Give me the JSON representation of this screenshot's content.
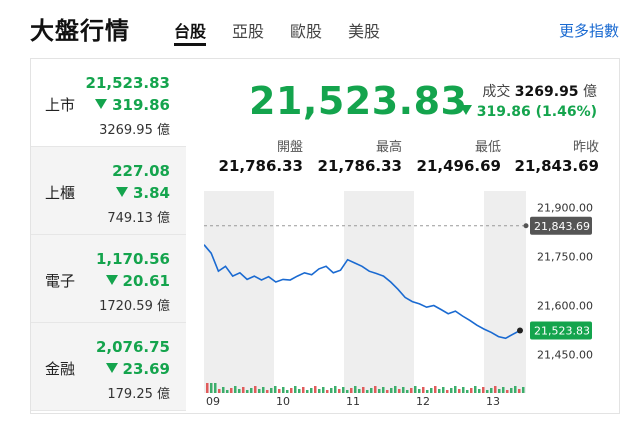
{
  "header": {
    "title": "大盤行情",
    "tabs": [
      "台股",
      "亞股",
      "歐股",
      "美股"
    ],
    "more_link": "更多指數"
  },
  "sidebar": {
    "items": [
      {
        "name": "上市",
        "price": "21,523.83",
        "change": "319.86",
        "volume": "3269.95 億"
      },
      {
        "name": "上櫃",
        "price": "227.08",
        "change": "3.84",
        "volume": "749.13 億"
      },
      {
        "name": "電子",
        "price": "1,170.56",
        "change": "20.61",
        "volume": "1720.59 億"
      },
      {
        "name": "金融",
        "price": "2,076.75",
        "change": "23.69",
        "volume": "179.25 億"
      }
    ]
  },
  "main": {
    "price": "21,523.83",
    "volume_label": "成交",
    "volume_value": "3269.95",
    "volume_unit": "億",
    "change": "319.86 (1.46%)",
    "ohlc": [
      {
        "label": "開盤",
        "value": "21,786.33"
      },
      {
        "label": "最高",
        "value": "21,786.33"
      },
      {
        "label": "最低",
        "value": "21,496.69"
      },
      {
        "label": "昨收",
        "value": "21,843.69"
      }
    ]
  },
  "colors": {
    "down": "#14a44d",
    "line": "#1a6ad1",
    "accent": "#1a6ad1"
  },
  "chart_data": {
    "type": "line",
    "x_tick_labels": [
      "09",
      "10",
      "11",
      "12",
      "13"
    ],
    "y_tick_labels": [
      "21,900.00",
      "21,750.00",
      "21,600.00",
      "21,450.00"
    ],
    "y_ticks": [
      21900,
      21750,
      21600,
      21450
    ],
    "ylim": [
      21400,
      21950
    ],
    "prev_close": 21843.69,
    "prev_close_label": "21,843.69",
    "last_label": "21,523.83",
    "series": [
      {
        "values": [
          21786,
          21760,
          21705,
          21720,
          21690,
          21700,
          21680,
          21690,
          21678,
          21688,
          21672,
          21680,
          21678,
          21690,
          21700,
          21694,
          21712,
          21720,
          21700,
          21708,
          21740,
          21730,
          21720,
          21705,
          21698,
          21690,
          21672,
          21650,
          21625,
          21612,
          21605,
          21595,
          21600,
          21588,
          21575,
          21583,
          21568,
          21555,
          21540,
          21528,
          21518,
          21505,
          21500,
          21512,
          21523.83
        ]
      }
    ]
  }
}
